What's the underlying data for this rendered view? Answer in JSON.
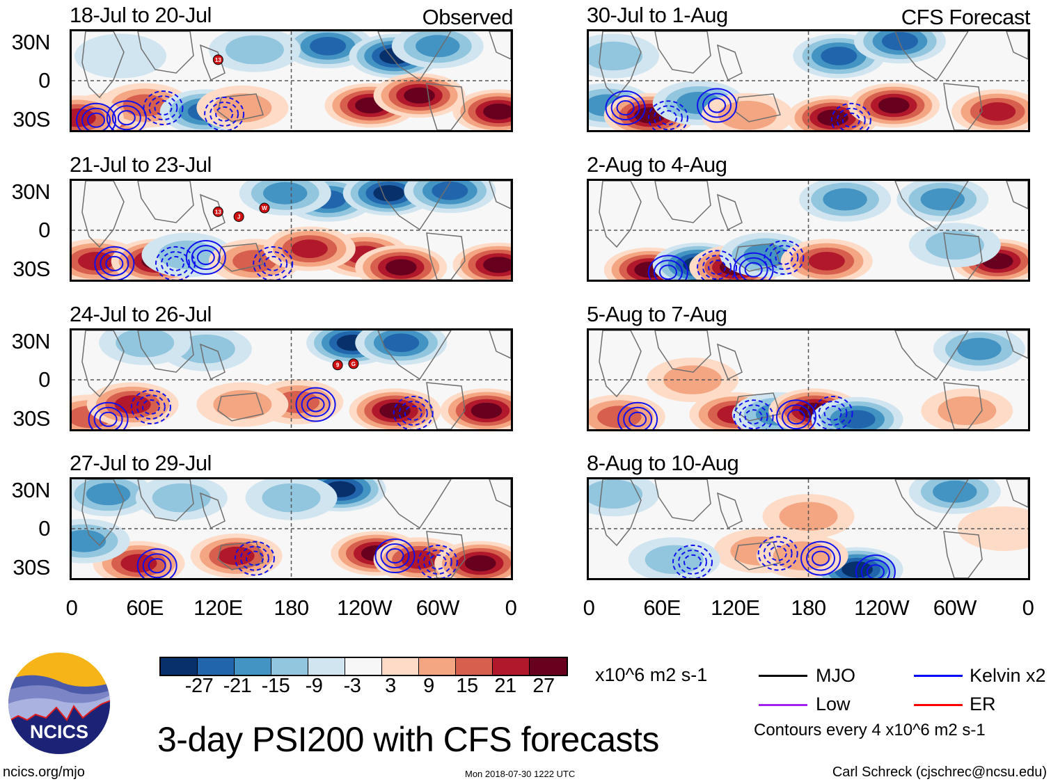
{
  "figure": {
    "title": "3-day PSI200 with CFS forecasts",
    "observed_label": "Observed",
    "forecast_label": "CFS Forecast",
    "footer_left": "ncics.org/mjo",
    "footer_timestamp": "Mon 2018-07-30 1222 UTC",
    "footer_author": "Carl Schreck (cjschrec@ncsu.edu)",
    "logo_text": "NCICS"
  },
  "legend": {
    "units": "x10^6 m2 s-1",
    "items": [
      {
        "label": "MJO",
        "color": "#000000"
      },
      {
        "label": "Kelvin x2",
        "color": "#0000ff"
      },
      {
        "label": "Low",
        "color": "#a020f0"
      },
      {
        "label": "ER",
        "color": "#ff0000"
      }
    ],
    "contours_note": "Contours every 4 x10^6 m2 s-1"
  },
  "chart_data": {
    "type": "heatmap",
    "variable": "200-hPa streamfunction anomaly (PSI200), 3-day mean",
    "units": "x10^6 m2 s-1",
    "colorbar": {
      "levels": [
        -27,
        -21,
        -15,
        -9,
        -3,
        3,
        9,
        15,
        21,
        27
      ],
      "tick_labels": [
        "-27",
        "-21",
        "-15",
        "-9",
        "-3",
        "3",
        "9",
        "15",
        "21",
        "27"
      ],
      "colors": [
        "#08306b",
        "#2166ac",
        "#4393c3",
        "#92c5de",
        "#d1e5f0",
        "#f7f7f7",
        "#fddbc7",
        "#f4a582",
        "#d6604d",
        "#b2182b",
        "#67001f"
      ]
    },
    "xaxis": {
      "range": [
        0,
        360
      ],
      "ticks": [
        0,
        60,
        120,
        180,
        240,
        300,
        360
      ],
      "tick_labels": [
        "0",
        "60E",
        "120E",
        "180",
        "120W",
        "60W",
        "0"
      ]
    },
    "yaxis": {
      "range": [
        -40,
        40
      ],
      "ticks": [
        30,
        0,
        -30
      ],
      "tick_labels": [
        "30N",
        "0",
        "30S"
      ]
    },
    "panels": [
      {
        "period": "18-Jul to 20-Jul",
        "source": "Observed",
        "anomalies": [
          {
            "lon": 30,
            "lat": -28,
            "value": 24
          },
          {
            "lon": 60,
            "lat": -20,
            "value": 20
          },
          {
            "lon": 5,
            "lat": -30,
            "value": 22
          },
          {
            "lon": 110,
            "lat": -25,
            "value": -24
          },
          {
            "lon": 140,
            "lat": -22,
            "value": 12
          },
          {
            "lon": 210,
            "lat": 28,
            "value": -26
          },
          {
            "lon": 265,
            "lat": 20,
            "value": -28
          },
          {
            "lon": 300,
            "lat": 28,
            "value": -15
          },
          {
            "lon": 245,
            "lat": -20,
            "value": 27
          },
          {
            "lon": 285,
            "lat": -12,
            "value": 28
          },
          {
            "lon": 350,
            "lat": -25,
            "value": 28
          },
          {
            "lon": 150,
            "lat": 25,
            "value": -12
          },
          {
            "lon": 40,
            "lat": 20,
            "value": -8
          }
        ],
        "storms": [
          {
            "lon": 120,
            "lat": 17,
            "label": "13"
          }
        ]
      },
      {
        "period": "21-Jul to 23-Jul",
        "source": "Observed",
        "anomalies": [
          {
            "lon": 20,
            "lat": -25,
            "value": 24
          },
          {
            "lon": 70,
            "lat": -25,
            "value": 27
          },
          {
            "lon": 95,
            "lat": -20,
            "value": -12
          },
          {
            "lon": 150,
            "lat": -25,
            "value": 15
          },
          {
            "lon": 210,
            "lat": 25,
            "value": -22
          },
          {
            "lon": 260,
            "lat": 30,
            "value": -27
          },
          {
            "lon": 310,
            "lat": 32,
            "value": -26
          },
          {
            "lon": 240,
            "lat": -20,
            "value": 24
          },
          {
            "lon": 270,
            "lat": -30,
            "value": 27
          },
          {
            "lon": 350,
            "lat": -28,
            "value": 28
          },
          {
            "lon": 195,
            "lat": -15,
            "value": 21
          },
          {
            "lon": 175,
            "lat": 30,
            "value": -15
          }
        ],
        "storms": [
          {
            "lon": 120,
            "lat": 15,
            "label": "13"
          },
          {
            "lon": 137,
            "lat": 11,
            "label": "J"
          },
          {
            "lon": 158,
            "lat": 18,
            "label": "W"
          }
        ]
      },
      {
        "period": "24-Jul to 26-Jul",
        "source": "Observed",
        "anomalies": [
          {
            "lon": 15,
            "lat": -30,
            "value": 18
          },
          {
            "lon": 50,
            "lat": -20,
            "value": 26
          },
          {
            "lon": 110,
            "lat": 25,
            "value": -12
          },
          {
            "lon": 230,
            "lat": 30,
            "value": -28
          },
          {
            "lon": 270,
            "lat": 30,
            "value": -24
          },
          {
            "lon": 185,
            "lat": -18,
            "value": 20
          },
          {
            "lon": 265,
            "lat": -25,
            "value": 28
          },
          {
            "lon": 340,
            "lat": -25,
            "value": 28
          },
          {
            "lon": 140,
            "lat": -20,
            "value": 12
          },
          {
            "lon": 60,
            "lat": 30,
            "value": -12
          }
        ],
        "storms": [
          {
            "lon": 218,
            "lat": 12,
            "label": "9"
          },
          {
            "lon": 231,
            "lat": 13,
            "label": "G"
          }
        ]
      },
      {
        "period": "27-Jul to 29-Jul",
        "source": "Observed",
        "anomalies": [
          {
            "lon": 55,
            "lat": -28,
            "value": 24
          },
          {
            "lon": 135,
            "lat": -22,
            "value": 26
          },
          {
            "lon": 30,
            "lat": 28,
            "value": -15
          },
          {
            "lon": 220,
            "lat": 32,
            "value": -28
          },
          {
            "lon": 180,
            "lat": 25,
            "value": -12
          },
          {
            "lon": 250,
            "lat": -20,
            "value": 28
          },
          {
            "lon": 285,
            "lat": -25,
            "value": 24
          },
          {
            "lon": 335,
            "lat": -28,
            "value": 28
          },
          {
            "lon": 90,
            "lat": 25,
            "value": -12
          },
          {
            "lon": 10,
            "lat": -10,
            "value": -15
          }
        ],
        "storms": []
      },
      {
        "period": "30-Jul to 1-Aug",
        "source": "CFS Forecast",
        "anomalies": [
          {
            "lon": 15,
            "lat": -20,
            "value": -18
          },
          {
            "lon": 50,
            "lat": -28,
            "value": 28
          },
          {
            "lon": 90,
            "lat": -18,
            "value": -15
          },
          {
            "lon": 205,
            "lat": 20,
            "value": -22
          },
          {
            "lon": 255,
            "lat": 32,
            "value": -22
          },
          {
            "lon": 200,
            "lat": -30,
            "value": 27
          },
          {
            "lon": 250,
            "lat": -20,
            "value": 27
          },
          {
            "lon": 335,
            "lat": -25,
            "value": 24
          },
          {
            "lon": 20,
            "lat": 20,
            "value": -12
          },
          {
            "lon": 130,
            "lat": -28,
            "value": 12
          }
        ],
        "storms": []
      },
      {
        "period": "2-Aug to 4-Aug",
        "source": "CFS Forecast",
        "anomalies": [
          {
            "lon": 50,
            "lat": -32,
            "value": 27
          },
          {
            "lon": 90,
            "lat": -28,
            "value": -27
          },
          {
            "lon": 120,
            "lat": -30,
            "value": 28
          },
          {
            "lon": 145,
            "lat": -20,
            "value": -18
          },
          {
            "lon": 195,
            "lat": -25,
            "value": 24
          },
          {
            "lon": 335,
            "lat": -25,
            "value": 28
          },
          {
            "lon": 290,
            "lat": 25,
            "value": -15
          },
          {
            "lon": 210,
            "lat": 25,
            "value": -15
          },
          {
            "lon": 300,
            "lat": -12,
            "value": -10
          }
        ],
        "storms": []
      },
      {
        "period": "5-Aug to 7-Aug",
        "source": "CFS Forecast",
        "anomalies": [
          {
            "lon": 25,
            "lat": -30,
            "value": 15
          },
          {
            "lon": 85,
            "lat": 0,
            "value": 9
          },
          {
            "lon": 120,
            "lat": -28,
            "value": 21
          },
          {
            "lon": 155,
            "lat": -28,
            "value": -20
          },
          {
            "lon": 185,
            "lat": -25,
            "value": 27
          },
          {
            "lon": 220,
            "lat": -32,
            "value": -24
          },
          {
            "lon": 320,
            "lat": 25,
            "value": -15
          },
          {
            "lon": 310,
            "lat": -25,
            "value": 12
          }
        ],
        "storms": []
      },
      {
        "period": "8-Aug to 10-Aug",
        "source": "CFS Forecast",
        "anomalies": [
          {
            "lon": 20,
            "lat": 28,
            "value": -12
          },
          {
            "lon": 180,
            "lat": 10,
            "value": 9
          },
          {
            "lon": 220,
            "lat": -33,
            "value": -27
          },
          {
            "lon": 300,
            "lat": 30,
            "value": -15
          },
          {
            "lon": 140,
            "lat": -18,
            "value": 10
          },
          {
            "lon": 175,
            "lat": -22,
            "value": 10
          },
          {
            "lon": 70,
            "lat": -25,
            "value": -9
          },
          {
            "lon": 340,
            "lat": 0,
            "value": 6
          }
        ],
        "storms": []
      }
    ]
  }
}
